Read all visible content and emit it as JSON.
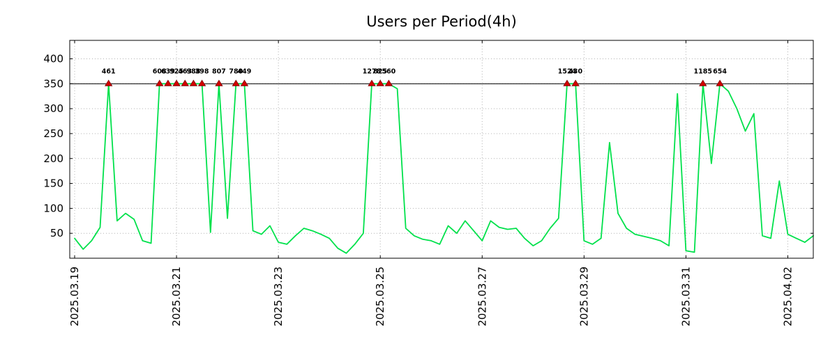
{
  "chart_data": {
    "type": "line",
    "title": "Users per Period(4h)",
    "x_start": "2025.03.19 00:00",
    "step_hours": 4,
    "x_span_days": 14.5,
    "ylim": [
      0,
      437
    ],
    "clip_level": 350,
    "yticks": [
      50,
      100,
      150,
      200,
      250,
      300,
      350,
      400
    ],
    "xticks": [
      {
        "day": 0,
        "label": "2025.03.19"
      },
      {
        "day": 2,
        "label": "2025.03.21"
      },
      {
        "day": 4,
        "label": "2025.03.23"
      },
      {
        "day": 6,
        "label": "2025.03.25"
      },
      {
        "day": 8,
        "label": "2025.03.27"
      },
      {
        "day": 10,
        "label": "2025.03.29"
      },
      {
        "day": 12,
        "label": "2025.03.31"
      },
      {
        "day": 14,
        "label": "2025.04.02"
      }
    ],
    "values": [
      40,
      18,
      35,
      62,
      461,
      75,
      90,
      78,
      35,
      30,
      608,
      639,
      925,
      463,
      988,
      398,
      52,
      807,
      80,
      780,
      449,
      55,
      48,
      65,
      32,
      28,
      45,
      60,
      55,
      48,
      40,
      20,
      10,
      28,
      50,
      1278,
      825,
      560,
      340,
      60,
      45,
      38,
      35,
      28,
      65,
      50,
      75,
      55,
      35,
      75,
      62,
      58,
      60,
      40,
      25,
      35,
      60,
      80,
      1524,
      430,
      35,
      28,
      40,
      232,
      90,
      60,
      48,
      44,
      40,
      35,
      25,
      330,
      15,
      12,
      1185,
      190,
      654,
      335,
      300,
      255,
      290,
      45,
      40,
      155,
      48,
      40,
      32,
      45
    ],
    "peak_marker": "red-triangle",
    "peak_labels_are_values": true,
    "grid": true,
    "legend": "none",
    "colors": {
      "line": "#00e14b",
      "peak_label": "#00a847",
      "marker_fill": "#d40000",
      "marker_edge": "#7a0000",
      "grid": "#b3b3b3",
      "axis": "#000000",
      "clip_line": "#000000",
      "background": "#ffffff"
    }
  }
}
